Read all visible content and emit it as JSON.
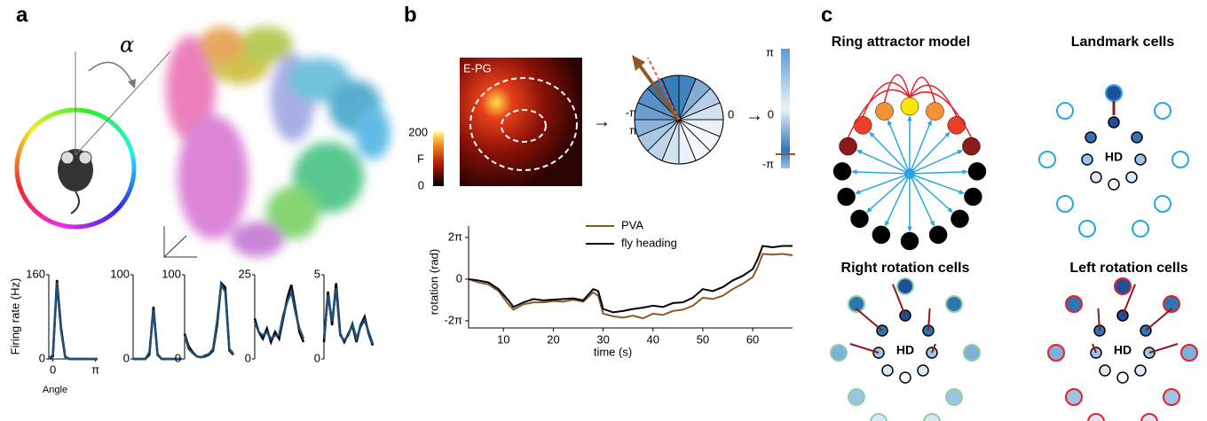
{
  "panel_a": {
    "label": "a",
    "alpha": "α",
    "tuning": {
      "type": "line",
      "ylabel": "Firing rate (Hz)",
      "xlabel": "Angle",
      "x": [
        -0.3,
        0,
        0.3,
        0.6,
        0.9,
        1.2,
        1.5,
        1.8,
        2.1,
        2.4,
        2.7,
        3.0,
        3.3
      ],
      "xlim": [
        -0.3,
        3.3
      ],
      "xticks": [
        {
          "value": 0,
          "label": "0"
        },
        {
          "value": 3.14,
          "label": "π"
        }
      ],
      "plots": [
        {
          "ylim": [
            0,
            160
          ],
          "yticks": [
            0,
            160
          ],
          "series": [
            {
              "color": "#000000",
              "values": [
                0,
                5,
                150,
                60,
                5,
                0,
                0,
                0,
                0,
                0,
                0,
                0,
                0
              ]
            },
            {
              "color": "#1f4e79",
              "values": [
                0,
                8,
                145,
                55,
                4,
                0,
                0,
                0,
                0,
                0,
                0,
                0,
                0
              ]
            }
          ]
        },
        {
          "ylim": [
            0,
            100
          ],
          "yticks": [
            0,
            100
          ],
          "series": [
            {
              "color": "#000000",
              "values": [
                0,
                0,
                0,
                0,
                5,
                62,
                5,
                0,
                0,
                0,
                0,
                0,
                0
              ]
            },
            {
              "color": "#1f4e79",
              "values": [
                0,
                0,
                0,
                0,
                8,
                58,
                6,
                0,
                0,
                0,
                0,
                0,
                0
              ]
            }
          ]
        },
        {
          "ylim": [
            0,
            100
          ],
          "yticks": [
            0,
            100
          ],
          "series": [
            {
              "color": "#000000",
              "values": [
                30,
                15,
                8,
                3,
                2,
                3,
                5,
                10,
                40,
                90,
                85,
                10,
                5
              ]
            },
            {
              "color": "#1f4e79",
              "values": [
                28,
                12,
                7,
                3,
                2,
                4,
                6,
                12,
                45,
                88,
                80,
                12,
                6
              ]
            }
          ]
        },
        {
          "ylim": [
            0,
            25
          ],
          "yticks": [
            0,
            25
          ],
          "series": [
            {
              "color": "#000000",
              "values": [
                12,
                8,
                6,
                9,
                5,
                8,
                6,
                12,
                18,
                22,
                15,
                8,
                5
              ]
            },
            {
              "color": "#1f4e79",
              "values": [
                11,
                8,
                7,
                8,
                6,
                7,
                7,
                13,
                17,
                20,
                14,
                9,
                6
              ]
            }
          ]
        },
        {
          "ylim": [
            0,
            5
          ],
          "yticks": [
            0,
            5
          ],
          "series": [
            {
              "color": "#000000",
              "values": [
                1,
                4,
                2,
                4.5,
                1.5,
                1,
                1.5,
                2,
                1,
                2,
                2.5,
                1.5,
                0.8
              ]
            },
            {
              "color": "#1f4e79",
              "values": [
                1.2,
                3.8,
                2.2,
                4.2,
                1.4,
                1.1,
                1.4,
                2.1,
                1.2,
                1.9,
                2.3,
                1.6,
                0.9
              ]
            }
          ]
        }
      ]
    }
  },
  "panel_b": {
    "label": "b",
    "image_label": "E-PG",
    "colorbar": {
      "max": "200",
      "unit": "F",
      "min": "0"
    },
    "polar": {
      "left_top": "-π",
      "left_bottom": "π",
      "right": "0"
    },
    "bar": {
      "top": "π",
      "middle": "0",
      "bottom": "-π"
    },
    "chart_data": {
      "type": "line",
      "xlabel": "time (s)",
      "ylabel": "rotation (rad)",
      "x": [
        3,
        5,
        7,
        9,
        11,
        12,
        14,
        16,
        18,
        20,
        22,
        24,
        26,
        28,
        29,
        30,
        32,
        34,
        36,
        38,
        40,
        42,
        44,
        46,
        48,
        50,
        52,
        54,
        56,
        58,
        60,
        61,
        62,
        64,
        66,
        68
      ],
      "xlim": [
        3,
        68
      ],
      "xticks": [
        10,
        20,
        30,
        40,
        50,
        60
      ],
      "ylim": [
        -7.35,
        8.0
      ],
      "yticks": [
        {
          "value": -6.283,
          "label": "-2π"
        },
        0,
        {
          "value": 6.283,
          "label": "2π"
        }
      ],
      "series": [
        {
          "name": "PVA",
          "color": "#8b5a2b",
          "values": [
            0,
            -0.5,
            -0.8,
            -1.8,
            -3.8,
            -4.6,
            -3.8,
            -3.5,
            -3.5,
            -3.3,
            -3.4,
            -3.1,
            -3.4,
            -2.0,
            -2.5,
            -5.2,
            -5.6,
            -5.8,
            -5.5,
            -5.9,
            -5.2,
            -5.4,
            -4.8,
            -4.6,
            -4.0,
            -2.8,
            -3.0,
            -2.5,
            -1.5,
            -0.7,
            0.3,
            1.8,
            3.8,
            3.7,
            3.8,
            3.6
          ]
        },
        {
          "name": "fly heading",
          "color": "#000000",
          "values": [
            0,
            -0.2,
            -0.5,
            -1.5,
            -3.2,
            -4.2,
            -3.5,
            -3.0,
            -3.2,
            -3.1,
            -3.0,
            -2.9,
            -3.2,
            -1.5,
            -1.8,
            -4.5,
            -5.0,
            -4.8,
            -4.5,
            -4.3,
            -4.0,
            -4.2,
            -3.6,
            -3.5,
            -2.8,
            -1.5,
            -1.8,
            -1.2,
            -0.2,
            0.5,
            1.5,
            3.0,
            5.0,
            4.8,
            5.0,
            5.0
          ]
        }
      ]
    }
  },
  "panel_c": {
    "label": "c",
    "ring": "Ring attractor model",
    "landmark": "Landmark cells",
    "right": "Right rotation cells",
    "left": "Left rotation cells",
    "hd": "HD"
  }
}
